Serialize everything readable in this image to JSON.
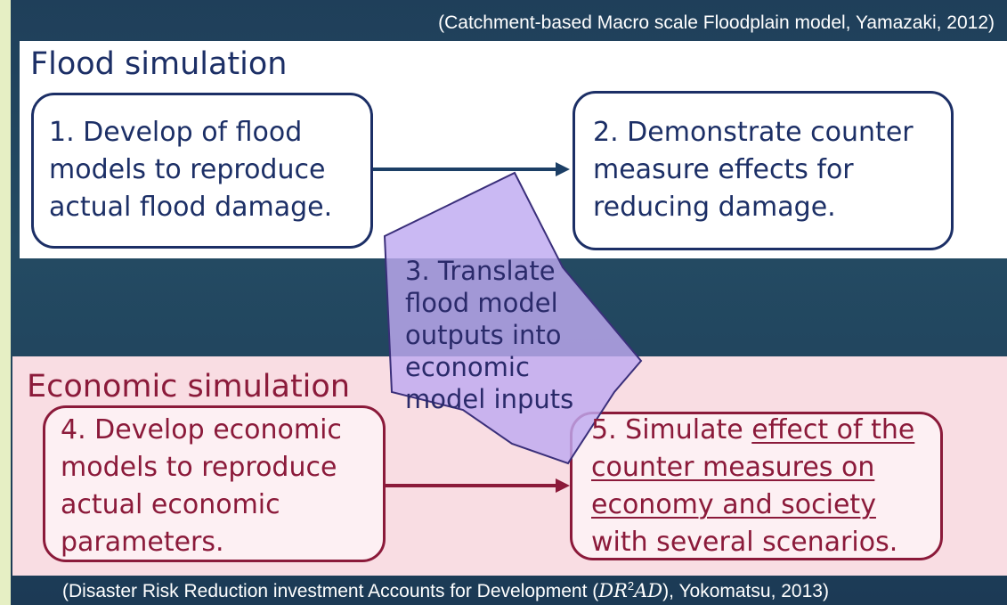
{
  "top_citation": "(Catchment-based Macro scale Floodplain model,  Yamazaki, 2012)",
  "flood": {
    "heading": "Flood simulation",
    "box1": [
      "1. Develop of flood",
      "models to reproduce",
      "actual flood damage."
    ],
    "box2": [
      "2. Demonstrate counter",
      "measure effects for",
      "reducing damage."
    ]
  },
  "translate": [
    "3. Translate",
    "flood model",
    "outputs into",
    "economic",
    "model inputs"
  ],
  "economic": {
    "heading": "Economic simulation",
    "box4": [
      "4. Develop economic",
      "models to reproduce",
      "actual economic",
      "parameters."
    ],
    "box5": {
      "line1_plain": "5. Simulate ",
      "line1_underlined": "effect of the",
      "line2": "counter measures on",
      "line3": "economy and society",
      "line4": "with several scenarios."
    }
  },
  "bottom_citation": {
    "before": "(Disaster Risk Reduction investment Accounts for Development (",
    "math_1": "DR",
    "superscript": "2",
    "math_2": "AD",
    "after": "), Yokomatsu, 2013)"
  }
}
